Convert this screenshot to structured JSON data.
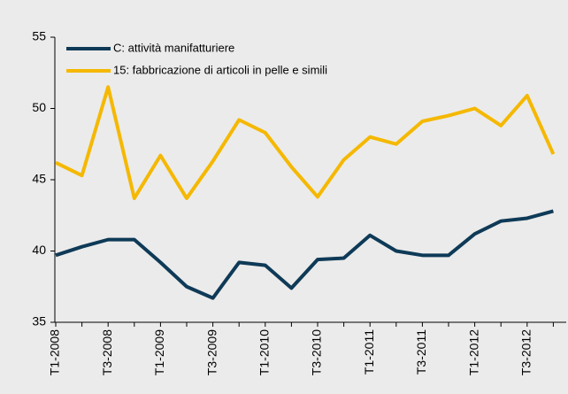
{
  "chart_data": {
    "type": "line",
    "categories": [
      "T1-2008",
      null,
      "T3-2008",
      null,
      "T1-2009",
      null,
      "T3-2009",
      null,
      "T1-2010",
      null,
      "T3-2010",
      null,
      "T1-2011",
      null,
      "T3-2011",
      null,
      "T1-2012",
      null,
      "T3-2012",
      null
    ],
    "series": [
      {
        "name": "C: attività manifatturiere",
        "color": "#0e3a57",
        "values": [
          39.7,
          40.3,
          40.8,
          40.8,
          39.2,
          37.5,
          36.7,
          39.2,
          39.0,
          37.4,
          39.4,
          39.5,
          41.1,
          40.0,
          39.7,
          39.7,
          41.2,
          42.1,
          42.3,
          42.8
        ]
      },
      {
        "name": "15: fabbricazione di articoli in pelle e simili",
        "color": "#f5b800",
        "values": [
          46.2,
          45.3,
          51.5,
          43.7,
          46.7,
          43.7,
          46.3,
          49.2,
          48.3,
          45.9,
          43.8,
          46.4,
          48.0,
          47.5,
          49.1,
          49.5,
          50.0,
          48.8,
          50.9,
          46.8
        ]
      }
    ],
    "ylim": [
      35,
      55
    ],
    "yticks": [
      35,
      40,
      45,
      50,
      55
    ],
    "legend": "upper left"
  }
}
